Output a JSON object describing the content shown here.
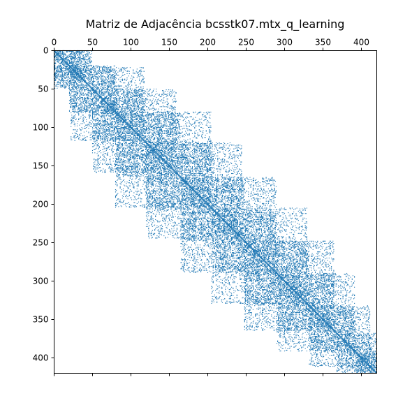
{
  "chart_data": {
    "type": "heatmap",
    "subtype": "spy",
    "title": "Matriz de Adjacência bcsstk07.mtx_q_learning",
    "matrix_size": 420,
    "xlim": [
      0,
      420
    ],
    "ylim": [
      0,
      420
    ],
    "x_axis_position": "top",
    "y_axis_inverted": true,
    "x_ticks": [
      0,
      50,
      100,
      150,
      200,
      250,
      300,
      350,
      400
    ],
    "y_ticks": [
      0,
      50,
      100,
      150,
      200,
      250,
      300,
      350,
      400
    ],
    "x_tick_labels": [
      "0",
      "50",
      "100",
      "150",
      "200",
      "250",
      "300",
      "350",
      "400"
    ],
    "y_tick_labels": [
      "0",
      "50",
      "100",
      "150",
      "200",
      "250",
      "300",
      "350",
      "400"
    ],
    "grid": false,
    "marker_color": "#1f77b4",
    "blocks": [
      {
        "rows": [
          0,
          40
        ],
        "cols": [
          0,
          50
        ]
      },
      {
        "rows": [
          0,
          50
        ],
        "cols": [
          0,
          40
        ]
      },
      {
        "rows": [
          20,
          80
        ],
        "cols": [
          20,
          82
        ]
      },
      {
        "rows": [
          50,
          118
        ],
        "cols": [
          22,
          120
        ]
      },
      {
        "rows": [
          80,
          160
        ],
        "cols": [
          50,
          165
        ]
      },
      {
        "rows": [
          120,
          205
        ],
        "cols": [
          80,
          208
        ]
      },
      {
        "rows": [
          165,
          245
        ],
        "cols": [
          120,
          248
        ]
      },
      {
        "rows": [
          210,
          290
        ],
        "cols": [
          165,
          290
        ]
      },
      {
        "rows": [
          248,
          330
        ],
        "cols": [
          205,
          332
        ]
      },
      {
        "rows": [
          290,
          365
        ],
        "cols": [
          248,
          368
        ]
      },
      {
        "rows": [
          332,
          392
        ],
        "cols": [
          290,
          392
        ]
      },
      {
        "rows": [
          368,
          412
        ],
        "cols": [
          332,
          415
        ]
      },
      {
        "rows": [
          392,
          420
        ],
        "cols": [
          368,
          420
        ]
      },
      {
        "rows": [
          398,
          420
        ],
        "cols": [
          395,
          420
        ]
      }
    ],
    "diagonal": true
  }
}
